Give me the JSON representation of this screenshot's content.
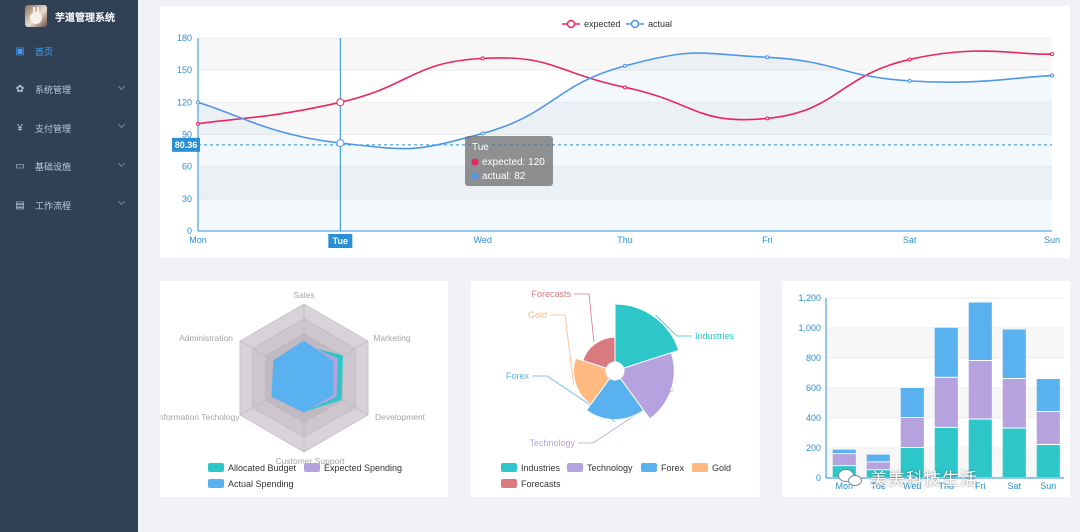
{
  "app": {
    "title": "芋道管理系统"
  },
  "sidebar": {
    "items": [
      {
        "label": "首页",
        "icon": "dashboard-icon",
        "glyph": "▣",
        "active": true,
        "expandable": false
      },
      {
        "label": "系统管理",
        "icon": "gear-icon",
        "glyph": "✿",
        "active": false,
        "expandable": true
      },
      {
        "label": "支付管理",
        "icon": "yen-icon",
        "glyph": "¥",
        "active": false,
        "expandable": true
      },
      {
        "label": "基础设施",
        "icon": "monitor-icon",
        "glyph": "▭",
        "active": false,
        "expandable": true
      },
      {
        "label": "工作流程",
        "icon": "briefcase-icon",
        "glyph": "▤",
        "active": false,
        "expandable": true
      }
    ]
  },
  "colors": {
    "sidebar_bg": "#304156",
    "active": "#409eff",
    "expected": "#e9265e",
    "actual": "#4f97e6"
  },
  "line_chart": {
    "chart_data": {
      "type": "line",
      "x": [
        "Mon",
        "Tue",
        "Wed",
        "Thu",
        "Fri",
        "Sat",
        "Sun"
      ],
      "series": [
        {
          "name": "expected",
          "values": [
            100,
            120,
            161,
            134,
            105,
            160,
            165
          ]
        },
        {
          "name": "actual",
          "values": [
            120,
            82,
            91,
            154,
            162,
            140,
            145
          ]
        }
      ],
      "ylim": [
        0,
        180
      ],
      "yticks": [
        "0",
        "30",
        "60",
        "90",
        "120",
        "150",
        "180"
      ],
      "legend": "top-center",
      "grid": true
    },
    "crosshair": {
      "x_label": "Tue",
      "y_label": "80.36",
      "y_value": 80.36
    },
    "tooltip": {
      "title": "Tue",
      "lines": [
        "expected: 120",
        "actual: 82"
      ]
    }
  },
  "radar_chart": {
    "chart_data": {
      "type": "radar",
      "indicators": [
        "Sales",
        "Marketing",
        "Development",
        "Customer Support",
        "Information Techology",
        "Administration"
      ],
      "max": 100,
      "series": [
        {
          "name": "Allocated Budget",
          "values": [
            43,
            60,
            58,
            45,
            43,
            44
          ]
        },
        {
          "name": "Expected Spending",
          "values": [
            46,
            52,
            50,
            45,
            50,
            47
          ]
        },
        {
          "name": "Actual Spending",
          "values": [
            50,
            45,
            45,
            46,
            50,
            47
          ]
        }
      ],
      "legend": "bottom"
    }
  },
  "rose_chart": {
    "chart_data": {
      "type": "pie",
      "rose": true,
      "categories": [
        "Industries",
        "Technology",
        "Forex",
        "Gold",
        "Forecasts"
      ],
      "values": [
        320,
        240,
        149,
        100,
        59
      ],
      "legend": "bottom"
    }
  },
  "bar_chart": {
    "chart_data": {
      "type": "bar",
      "stacked": true,
      "categories": [
        "Mon",
        "Tue",
        "Wed",
        "Thu",
        "Fri",
        "Sat",
        "Sun"
      ],
      "series": [
        {
          "values": [
            79,
            52,
            200,
            334,
            390,
            330,
            220
          ]
        },
        {
          "values": [
            80,
            52,
            200,
            334,
            390,
            330,
            220
          ]
        },
        {
          "values": [
            30,
            52,
            200,
            334,
            390,
            330,
            220
          ]
        }
      ],
      "ylim": [
        0,
        1200
      ],
      "yticks": [
        "0",
        "200",
        "400",
        "600",
        "800",
        "1,000",
        "1,200"
      ],
      "grid": true
    }
  },
  "watermark": {
    "text": "美美科技生活"
  }
}
